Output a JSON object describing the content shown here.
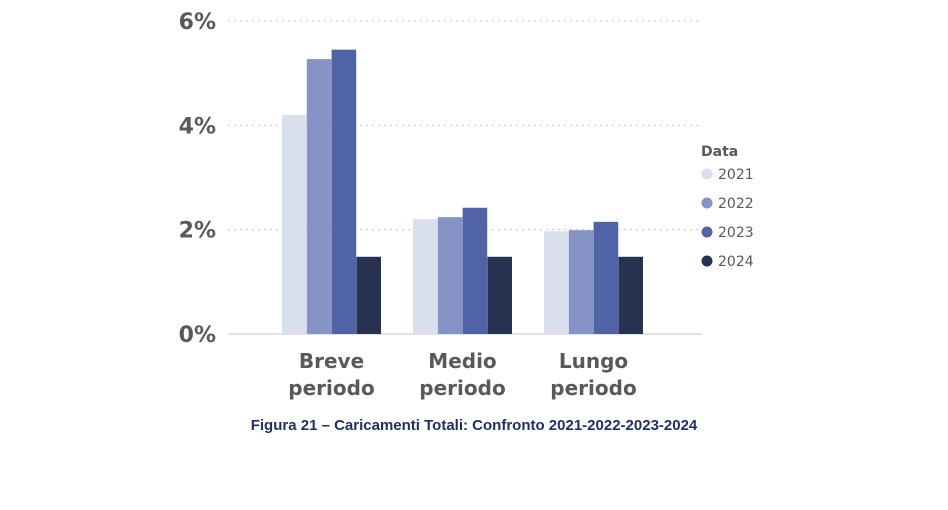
{
  "caption": "Figura 21 – Caricamenti Totali: Confronto 2021-2022-2023-2024",
  "chart_data": {
    "type": "bar",
    "categories": [
      [
        "Breve",
        "periodo"
      ],
      [
        "Medio",
        "periodo"
      ],
      [
        "Lungo",
        "periodo"
      ]
    ],
    "series": [
      {
        "name": "2021",
        "color": "#d9dfec",
        "values": [
          4.2,
          2.2,
          1.97
        ]
      },
      {
        "name": "2022",
        "color": "#8593c6",
        "values": [
          5.27,
          2.24,
          1.99
        ]
      },
      {
        "name": "2023",
        "color": "#5063a6",
        "values": [
          5.45,
          2.42,
          2.15
        ]
      },
      {
        "name": "2024",
        "color": "#273251",
        "values": [
          1.48,
          1.48,
          1.48
        ]
      }
    ],
    "y_ticks": [
      "0%",
      "2%",
      "4%",
      "6%"
    ],
    "ylim": [
      0,
      6
    ],
    "grid": "horizontal dotted",
    "legend": {
      "title": "Data",
      "placement": "right"
    }
  }
}
